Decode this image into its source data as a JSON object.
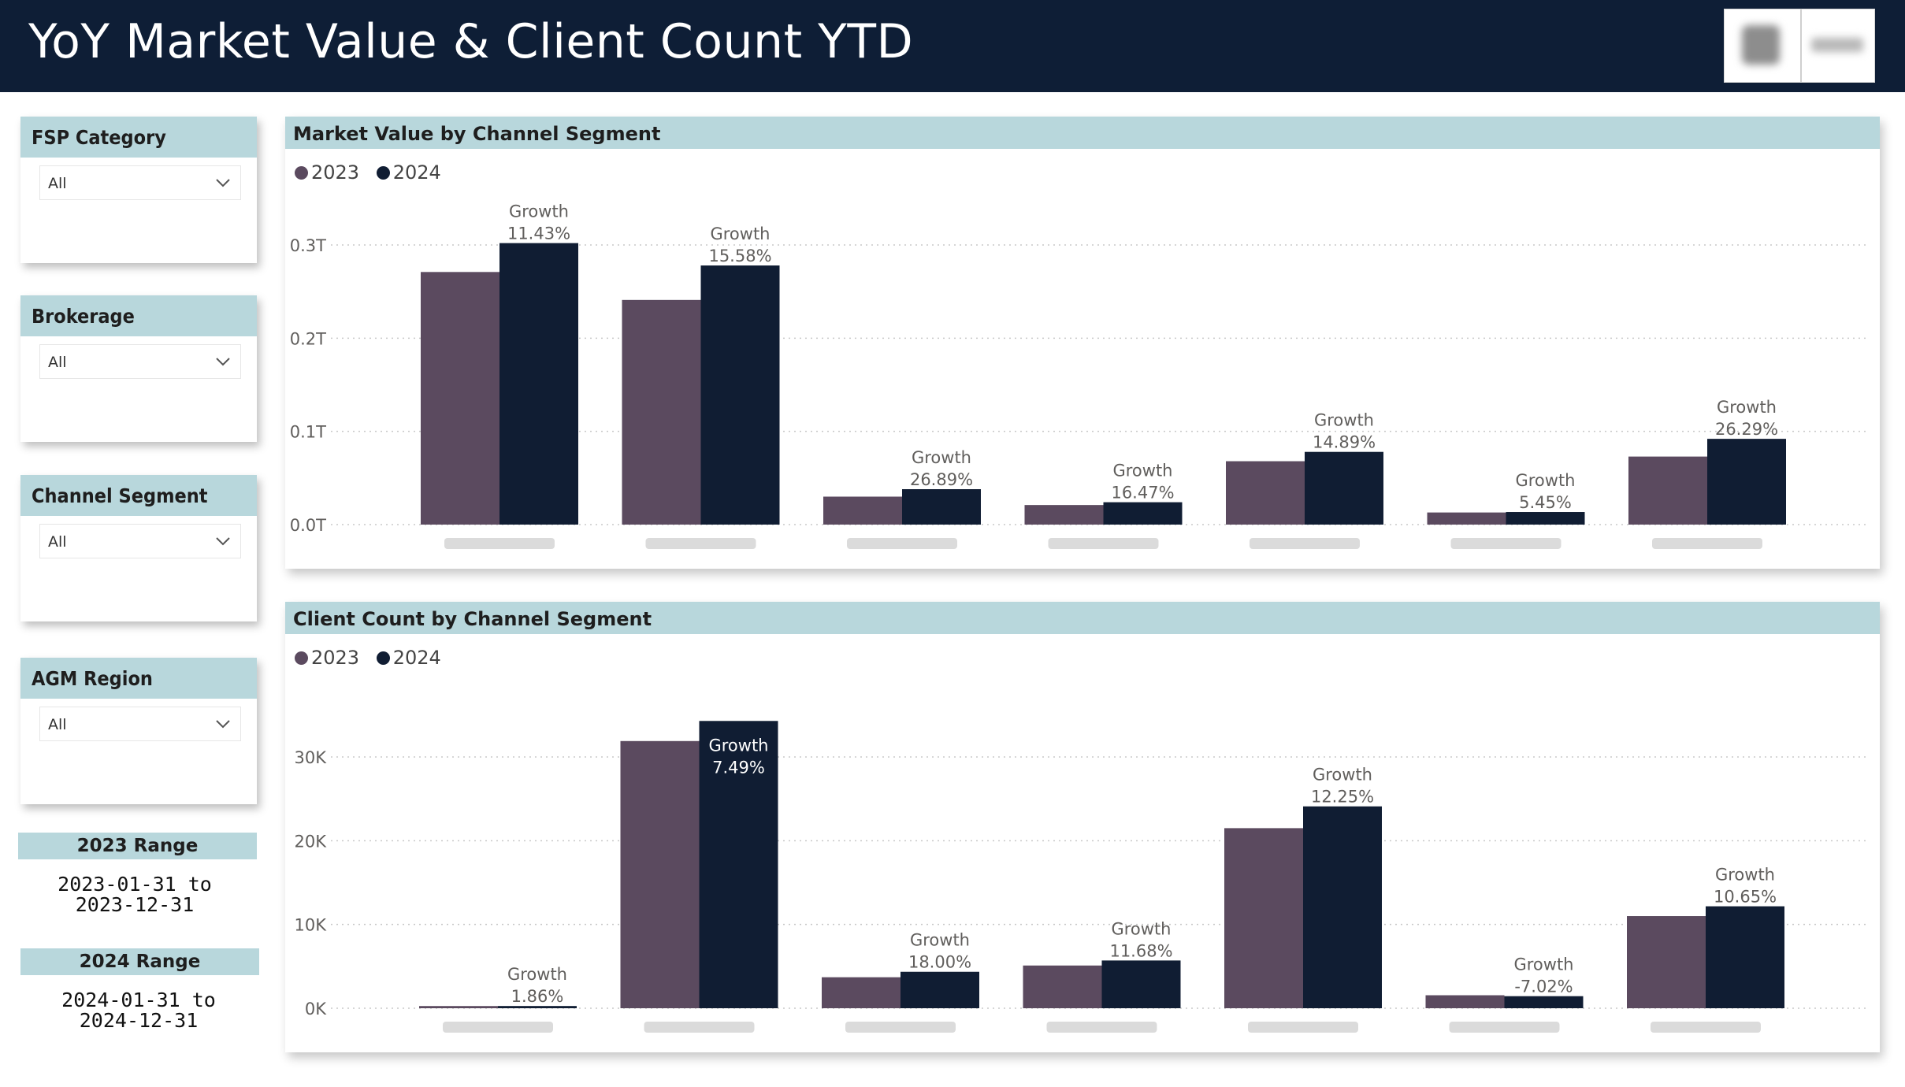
{
  "header": {
    "title": "YoY Market Value & Client Count YTD"
  },
  "slicers": [
    {
      "title": "FSP Category",
      "value": "All"
    },
    {
      "title": "Brokerage",
      "value": "All"
    },
    {
      "title": "Channel Segment",
      "value": "All"
    },
    {
      "title": "AGM Region",
      "value": "All"
    }
  ],
  "ranges": [
    {
      "label": "2023 Range",
      "line1": "2023-01-31 to",
      "line2": "2023-12-31"
    },
    {
      "label": "2024 Range",
      "line1": "2024-01-31 to",
      "line2": "2024-12-31"
    }
  ],
  "colors": {
    "header_bg": "#0e1e36",
    "panel_head": "#b8d7dc",
    "series_2023": "#5b4a5f",
    "series_2024": "#101d33"
  },
  "icons": {
    "dropdown": "chevron-down-icon",
    "legend_marker": "circle-icon"
  },
  "chart_data": [
    {
      "type": "bar",
      "title": "Market Value by Channel Segment",
      "legend_position": "top-left",
      "grid": true,
      "categories": [
        "",
        "",
        "",
        "",
        "",
        "",
        ""
      ],
      "series": [
        {
          "name": "2023",
          "values": [
            0.271,
            0.241,
            0.03,
            0.021,
            0.068,
            0.013,
            0.073
          ]
        },
        {
          "name": "2024",
          "values": [
            0.302,
            0.278,
            0.038,
            0.024,
            0.078,
            0.0135,
            0.092
          ]
        }
      ],
      "growth_label": "Growth",
      "growth": [
        "11.43%",
        "15.58%",
        "26.89%",
        "16.47%",
        "14.89%",
        "5.45%",
        "26.29%"
      ],
      "ylim": [
        0,
        0.3
      ],
      "y_ticks": [
        0,
        0.1,
        0.2,
        0.3
      ],
      "y_tick_labels": [
        "0.0T",
        "0.1T",
        "0.2T",
        "0.3T"
      ]
    },
    {
      "type": "bar",
      "title": "Client Count by Channel Segment",
      "legend_position": "top-left",
      "grid": true,
      "categories": [
        "",
        "",
        "",
        "",
        "",
        "",
        ""
      ],
      "series": [
        {
          "name": "2023",
          "values": [
            260,
            31900,
            3700,
            5100,
            21500,
            1550,
            11000
          ]
        },
        {
          "name": "2024",
          "values": [
            265,
            34300,
            4350,
            5700,
            24100,
            1440,
            12170
          ]
        }
      ],
      "growth_label": "Growth",
      "growth": [
        "1.86%",
        "7.49%",
        "18.00%",
        "11.68%",
        "12.25%",
        "-7.02%",
        "10.65%"
      ],
      "ylim": [
        0,
        30000
      ],
      "y_ticks": [
        0,
        10000,
        20000,
        30000
      ],
      "y_tick_labels": [
        "0K",
        "10K",
        "20K",
        "30K"
      ]
    }
  ]
}
